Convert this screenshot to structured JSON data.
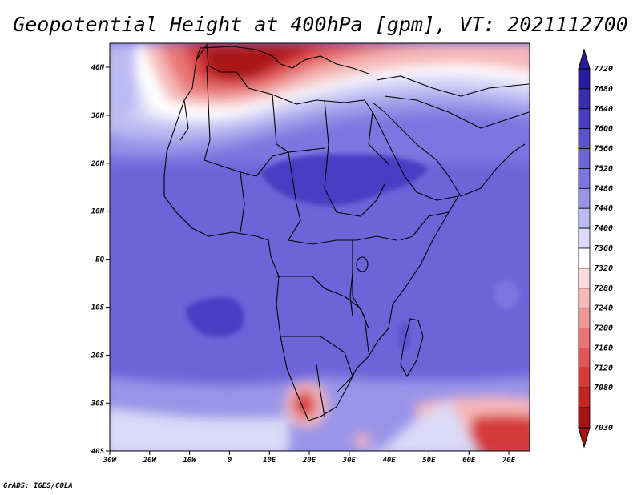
{
  "title": "Geopotential Height at 400hPa [gpm], VT: 2021112700",
  "credit": "GrADS: IGES/COLA",
  "map": {
    "lat_labels": [
      "40N",
      "30N",
      "20N",
      "10N",
      "EQ",
      "10S",
      "20S",
      "30S",
      "40S"
    ],
    "lon_labels": [
      "30W",
      "20W",
      "10W",
      "0",
      "10E",
      "20E",
      "30E",
      "40E",
      "50E",
      "60E",
      "70E"
    ]
  },
  "colorbar": {
    "labels": [
      "7720",
      "7680",
      "7640",
      "7600",
      "7560",
      "7520",
      "7480",
      "7440",
      "7400",
      "7360",
      "7320",
      "7280",
      "7240",
      "7200",
      "7160",
      "7120",
      "7080",
      "7030"
    ],
    "colors": [
      "#2a1a9c",
      "#3a2cb0",
      "#4a3ec4",
      "#5b52d0",
      "#6c64d8",
      "#7d76e0",
      "#9a94e8",
      "#bdb9f2",
      "#dcdaf8",
      "#ffffff",
      "#fbdcdc",
      "#f5b8b8",
      "#ef9696",
      "#e87474",
      "#e05656",
      "#d63a3a",
      "#c42424",
      "#a81212"
    ]
  },
  "palette": {
    "deep_blue": "#4a3ec4",
    "mid_blue": "#6c64d8",
    "light_blue": "#9a94e8",
    "pale_blue": "#dcdaf8",
    "pink": "#f5b8b8",
    "red": "#d63a3a",
    "dark_red": "#a81212"
  }
}
